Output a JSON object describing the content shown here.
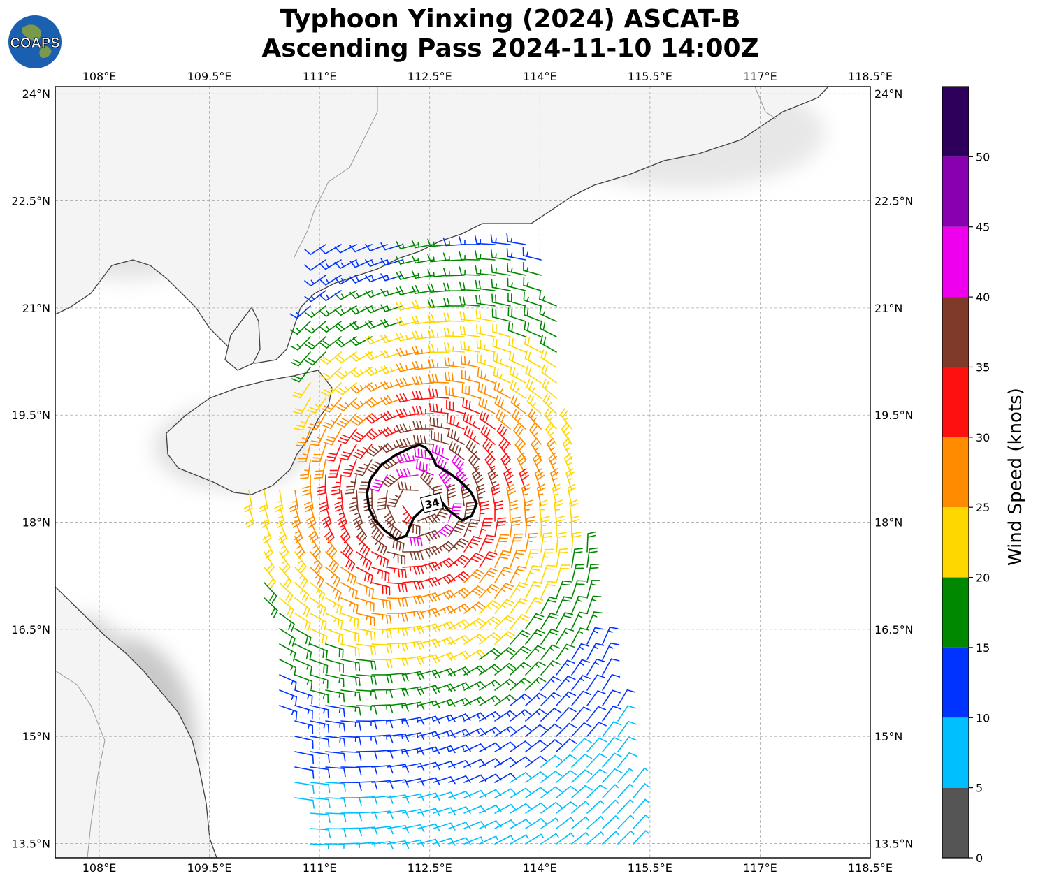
{
  "title": {
    "line1": "Typhoon Yinxing (2024) ASCAT-B",
    "line2": "Ascending Pass 2024-11-10 14:00Z"
  },
  "logo": {
    "text": "COAPS",
    "icon": "globe-logo-icon"
  },
  "map": {
    "lon_range": [
      107.4,
      118.5
    ],
    "lat_range": [
      13.3,
      24.1
    ],
    "lon_ticks": [
      "108°E",
      "109.5°E",
      "111°E",
      "112.5°E",
      "114°E",
      "115.5°E",
      "117°E",
      "118.5°E"
    ],
    "lat_ticks": [
      "24°N",
      "22.5°N",
      "21°N",
      "19.5°N",
      "18°N",
      "16.5°N",
      "15°N",
      "13.5°N"
    ],
    "grid": true,
    "contour_label": "34",
    "center": {
      "lon": 112.3,
      "lat": 18.3
    }
  },
  "colorbar": {
    "label": "Wind Speed (knots)",
    "ticks": [
      "0",
      "5",
      "10",
      "15",
      "20",
      "25",
      "30",
      "35",
      "40",
      "45",
      "50"
    ],
    "colors": [
      "#555555",
      "#00bfff",
      "#0033ff",
      "#008800",
      "#ffd700",
      "#ff8c00",
      "#ff1010",
      "#803a2a",
      "#ee00ee",
      "#8800b0",
      "#2e005c"
    ]
  }
}
